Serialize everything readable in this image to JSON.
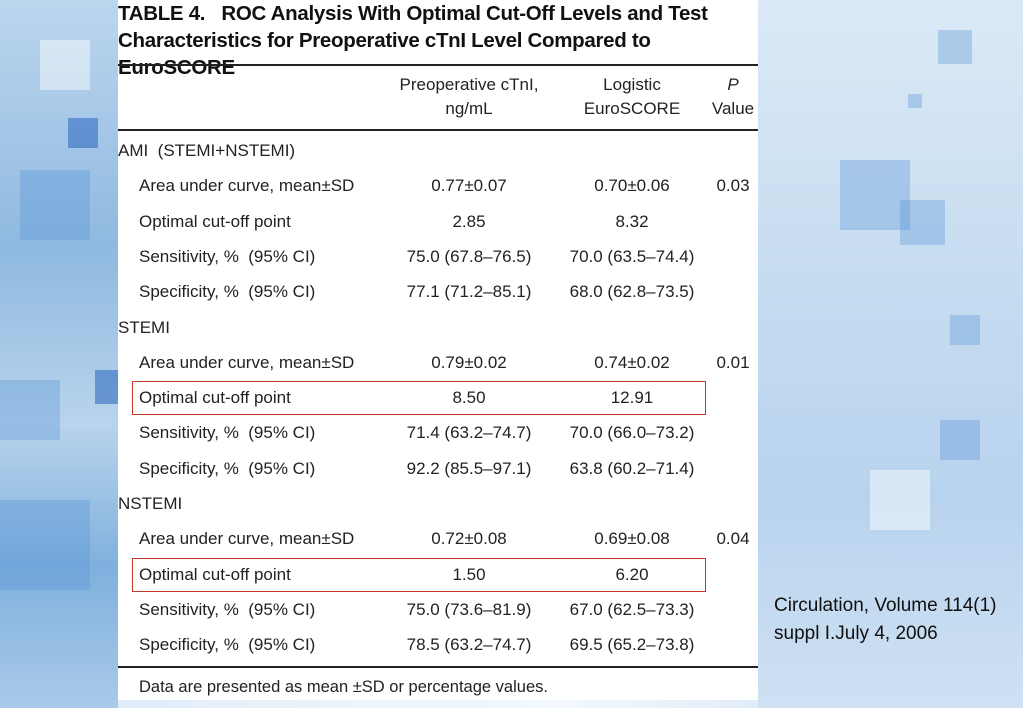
{
  "table": {
    "title_line1": "TABLE 4.   ROC Analysis With Optimal Cut-Off Levels and Test",
    "title_line2": "Characteristics for Preoperative cTnI Level Compared to EuroSCORE",
    "headers": {
      "col2_line1": "Preoperative cTnI,",
      "col2_line2": "ng/mL",
      "col3_line1": "Logistic",
      "col3_line2": "EuroSCORE",
      "col4_line1": "P",
      "col4_line2": "Value"
    },
    "rows": [
      {
        "label": "AMI  (STEMI+NSTEMI)",
        "ctni": "",
        "euro": "",
        "p": "",
        "group": true
      },
      {
        "label": "Area under curve, mean±SD",
        "ctni": "0.77±0.07",
        "euro": "0.70±0.06",
        "p": "0.03"
      },
      {
        "label": "Optimal cut-off point",
        "ctni": "2.85",
        "euro": "8.32",
        "p": ""
      },
      {
        "label": "Sensitivity, %  (95% CI)",
        "ctni": "75.0 (67.8–76.5)",
        "euro": "70.0 (63.5–74.4)",
        "p": ""
      },
      {
        "label": "Specificity, %  (95% CI)",
        "ctni": "77.1 (71.2–85.1)",
        "euro": "68.0 (62.8–73.5)",
        "p": ""
      },
      {
        "label": "STEMI",
        "ctni": "",
        "euro": "",
        "p": "",
        "group": true
      },
      {
        "label": "Area under curve, mean±SD",
        "ctni": "0.79±0.02",
        "euro": "0.74±0.02",
        "p": "0.01"
      },
      {
        "label": "Optimal cut-off point",
        "ctni": "8.50",
        "euro": "12.91",
        "p": "",
        "highlight": true
      },
      {
        "label": "Sensitivity, %  (95% CI)",
        "ctni": "71.4 (63.2–74.7)",
        "euro": "70.0 (66.0–73.2)",
        "p": ""
      },
      {
        "label": "Specificity, %  (95% CI)",
        "ctni": "92.2 (85.5–97.1)",
        "euro": "63.8 (60.2–71.4)",
        "p": ""
      },
      {
        "label": "NSTEMI",
        "ctni": "",
        "euro": "",
        "p": "",
        "group": true
      },
      {
        "label": "Area under curve, mean±SD",
        "ctni": "0.72±0.08",
        "euro": "0.69±0.08",
        "p": "0.04"
      },
      {
        "label": "Optimal cut-off point",
        "ctni": "1.50",
        "euro": "6.20",
        "p": "",
        "highlight": true
      },
      {
        "label": "Sensitivity, %  (95% CI)",
        "ctni": "75.0 (73.6–81.9)",
        "euro": "67.0 (62.5–73.3)",
        "p": ""
      },
      {
        "label": "Specificity, %  (95% CI)",
        "ctni": "78.5 (63.2–74.7)",
        "euro": "69.5 (65.2–73.8)",
        "p": ""
      }
    ],
    "footnote": "Data are presented as mean ±SD or percentage values."
  },
  "citation": "Circulation, Volume 114(1) suppl I.July 4, 2006",
  "colors": {
    "highlight_border": "#c0392b",
    "background_accent": "#5a96d7"
  }
}
